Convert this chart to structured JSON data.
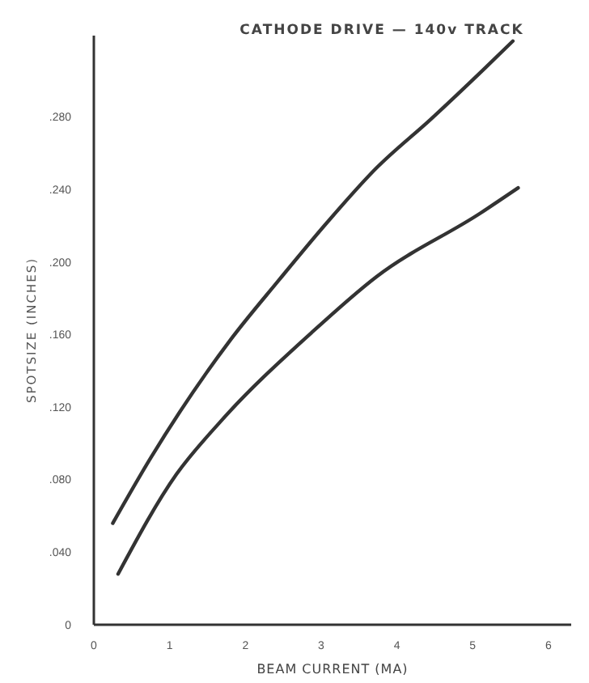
{
  "chart_data": {
    "type": "line",
    "title": "CATHODE DRIVE — 140v TRACK",
    "xlabel": "BEAM CURRENT (MA)",
    "ylabel": "SPOTSIZE (INCHES)",
    "xlim": [
      0,
      6.3
    ],
    "xticks": [
      0,
      1,
      2,
      3,
      4,
      5,
      6
    ],
    "ylim": [
      0,
      0.325
    ],
    "yticks": [
      0,
      {
        "value": 0.04,
        "label": ".040"
      },
      {
        "value": 0.08,
        "label": ".080"
      },
      {
        "value": 0.12,
        "label": ".120"
      },
      {
        "value": 0.16,
        "label": ".160"
      },
      {
        "value": 0.2,
        "label": ".200"
      },
      {
        "value": 0.24,
        "label": ".240"
      },
      {
        "value": 0.28,
        "label": ".280"
      }
    ],
    "grid": false,
    "marker": "none",
    "line_style": "solid",
    "series": [
      {
        "color": "#333333",
        "x": [
          0.25,
          0.75,
          1.8,
          2.44,
          3.08,
          3.73,
          4.45,
          5.16,
          5.53
        ],
        "values": [
          0.056,
          0.092,
          0.157,
          0.19,
          0.222,
          0.252,
          0.279,
          0.307,
          0.322
        ]
      },
      {
        "color": "#333333",
        "x": [
          0.32,
          1.09,
          1.67,
          2.87,
          3.73,
          5.1,
          5.6
        ],
        "values": [
          0.028,
          0.083,
          0.112,
          0.161,
          0.192,
          0.227,
          0.241
        ]
      }
    ]
  }
}
